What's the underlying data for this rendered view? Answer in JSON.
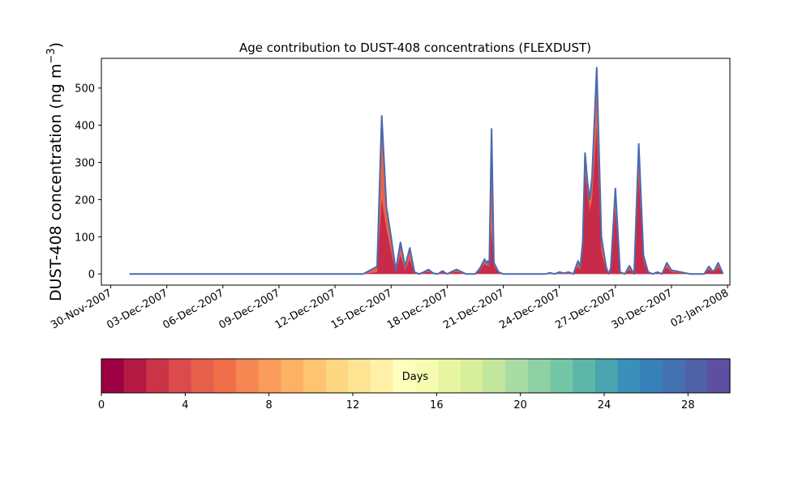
{
  "chart_data": {
    "type": "area",
    "title": "Age contribution to DUST-408 concentrations (FLEXDUST)",
    "ylabel_main": "DUST-408 concentration (ng m",
    "ylabel_exp": "−3",
    "ylabel_close": ")",
    "xlabel": "",
    "ylim": [
      -30,
      580
    ],
    "yticks": [
      0,
      100,
      200,
      300,
      400,
      500
    ],
    "xlim": [
      "2007-11-29 12:00",
      "2008-01-02 03:00"
    ],
    "xticks": [
      "30-Nov-2007",
      "03-Dec-2007",
      "06-Dec-2007",
      "09-Dec-2007",
      "12-Dec-2007",
      "15-Dec-2007",
      "18-Dec-2007",
      "21-Dec-2007",
      "24-Dec-2007",
      "27-Dec-2007",
      "30-Dec-2007",
      "02-Jan-2008"
    ],
    "grid": false,
    "series_total": {
      "name": "",
      "x": [
        "2007-12-01 00:00",
        "2007-12-13 12:00",
        "2007-12-14 06:00",
        "2007-12-14 12:00",
        "2007-12-14 18:00",
        "2007-12-15 00:00",
        "2007-12-15 06:00",
        "2007-12-15 12:00",
        "2007-12-15 18:00",
        "2007-12-16 00:00",
        "2007-12-16 06:00",
        "2007-12-16 12:00",
        "2007-12-16 18:00",
        "2007-12-17 00:00",
        "2007-12-17 06:00",
        "2007-12-17 12:00",
        "2007-12-17 18:00",
        "2007-12-18 00:00",
        "2007-12-18 12:00",
        "2007-12-19 00:00",
        "2007-12-19 06:00",
        "2007-12-19 12:00",
        "2007-12-19 18:00",
        "2007-12-20 00:00",
        "2007-12-20 02:00",
        "2007-12-20 04:00",
        "2007-12-20 06:00",
        "2007-12-20 09:00",
        "2007-12-20 12:00",
        "2007-12-20 18:00",
        "2007-12-21 00:00",
        "2007-12-22 00:00",
        "2007-12-23 06:00",
        "2007-12-23 12:00",
        "2007-12-23 18:00",
        "2007-12-24 00:00",
        "2007-12-24 06:00",
        "2007-12-24 12:00",
        "2007-12-24 18:00",
        "2007-12-25 00:00",
        "2007-12-25 03:00",
        "2007-12-25 06:00",
        "2007-12-25 09:00",
        "2007-12-25 12:00",
        "2007-12-25 15:00",
        "2007-12-25 18:00",
        "2007-12-26 00:00",
        "2007-12-26 06:00",
        "2007-12-26 12:00",
        "2007-12-26 15:00",
        "2007-12-26 18:00",
        "2007-12-27 00:00",
        "2007-12-27 06:00",
        "2007-12-27 12:00",
        "2007-12-27 18:00",
        "2007-12-28 00:00",
        "2007-12-28 06:00",
        "2007-12-28 12:00",
        "2007-12-28 18:00",
        "2007-12-29 00:00",
        "2007-12-29 06:00",
        "2007-12-29 12:00",
        "2007-12-29 18:00",
        "2007-12-30 00:00",
        "2007-12-31 00:00",
        "2007-12-31 12:00",
        "2007-12-31 18:00",
        "2008-01-01 00:00",
        "2008-01-01 06:00",
        "2008-01-01 12:00",
        "2008-01-01 18:00"
      ],
      "y": [
        0,
        0,
        20,
        425,
        180,
        100,
        10,
        85,
        20,
        70,
        5,
        0,
        5,
        12,
        2,
        0,
        8,
        0,
        12,
        0,
        0,
        0,
        15,
        40,
        30,
        35,
        25,
        390,
        30,
        5,
        0,
        0,
        0,
        3,
        0,
        5,
        2,
        5,
        0,
        35,
        20,
        85,
        325,
        250,
        200,
        260,
        555,
        100,
        20,
        0,
        15,
        230,
        5,
        0,
        22,
        0,
        350,
        50,
        5,
        0,
        5,
        0,
        30,
        10,
        0,
        0,
        0,
        20,
        5,
        30,
        0
      ]
    },
    "series_young": {
      "name": "",
      "x": [
        "2007-12-01 00:00",
        "2007-12-13 12:00",
        "2007-12-14 06:00",
        "2007-12-14 12:00",
        "2007-12-14 18:00",
        "2007-12-15 00:00",
        "2007-12-15 06:00",
        "2007-12-15 12:00",
        "2007-12-15 18:00",
        "2007-12-16 00:00",
        "2007-12-16 06:00",
        "2007-12-16 12:00",
        "2007-12-16 18:00",
        "2007-12-17 00:00",
        "2007-12-17 06:00",
        "2007-12-17 12:00",
        "2007-12-17 18:00",
        "2007-12-18 00:00",
        "2007-12-18 12:00",
        "2007-12-19 00:00",
        "2007-12-19 06:00",
        "2007-12-19 12:00",
        "2007-12-19 18:00",
        "2007-12-20 00:00",
        "2007-12-20 02:00",
        "2007-12-20 04:00",
        "2007-12-20 06:00",
        "2007-12-20 09:00",
        "2007-12-20 12:00",
        "2007-12-20 18:00",
        "2007-12-21 00:00",
        "2007-12-22 00:00",
        "2007-12-23 06:00",
        "2007-12-23 12:00",
        "2007-12-23 18:00",
        "2007-12-24 00:00",
        "2007-12-24 06:00",
        "2007-12-24 12:00",
        "2007-12-24 18:00",
        "2007-12-25 00:00",
        "2007-12-25 03:00",
        "2007-12-25 06:00",
        "2007-12-25 09:00",
        "2007-12-25 12:00",
        "2007-12-25 15:00",
        "2007-12-25 18:00",
        "2007-12-26 00:00",
        "2007-12-26 06:00",
        "2007-12-26 12:00",
        "2007-12-26 15:00",
        "2007-12-26 18:00",
        "2007-12-27 00:00",
        "2007-12-27 06:00",
        "2007-12-27 12:00",
        "2007-12-27 18:00",
        "2007-12-28 00:00",
        "2007-12-28 06:00",
        "2007-12-28 12:00",
        "2007-12-28 18:00",
        "2007-12-29 00:00",
        "2007-12-29 06:00",
        "2007-12-29 12:00",
        "2007-12-29 18:00",
        "2007-12-30 00:00",
        "2007-12-31 00:00",
        "2007-12-31 12:00",
        "2007-12-31 18:00",
        "2008-01-01 00:00",
        "2008-01-01 06:00",
        "2008-01-01 12:00",
        "2008-01-01 18:00"
      ],
      "y": [
        0,
        0,
        5,
        200,
        120,
        60,
        5,
        50,
        10,
        40,
        2,
        0,
        2,
        6,
        1,
        0,
        4,
        0,
        6,
        0,
        0,
        0,
        10,
        28,
        22,
        25,
        18,
        120,
        20,
        3,
        0,
        0,
        0,
        1,
        0,
        2,
        1,
        2,
        0,
        20,
        12,
        55,
        270,
        220,
        170,
        200,
        395,
        60,
        10,
        0,
        8,
        170,
        3,
        0,
        12,
        0,
        260,
        35,
        3,
        0,
        3,
        0,
        18,
        5,
        0,
        0,
        0,
        12,
        3,
        18,
        0
      ]
    },
    "colorbar": {
      "label": "Days",
      "min": 0,
      "max": 30,
      "ticks": [
        0,
        4,
        8,
        12,
        16,
        20,
        24,
        28
      ],
      "colors": [
        "#9e0142",
        "#b51a44",
        "#cb3347",
        "#db4a4c",
        "#e65f4b",
        "#f06f49",
        "#f68652",
        "#fa9c5c",
        "#fdb164",
        "#fec471",
        "#fed782",
        "#fee593",
        "#fff1a7",
        "#feffbe",
        "#f5fbb0",
        "#e9f6a1",
        "#d7ef9b",
        "#c1e69e",
        "#a9dca3",
        "#8fd1a5",
        "#74c7a5",
        "#5cb7a9",
        "#4aa5b0",
        "#3990ba",
        "#3880b9",
        "#4471b2",
        "#5062a7",
        "#5e4fa2"
      ]
    }
  }
}
